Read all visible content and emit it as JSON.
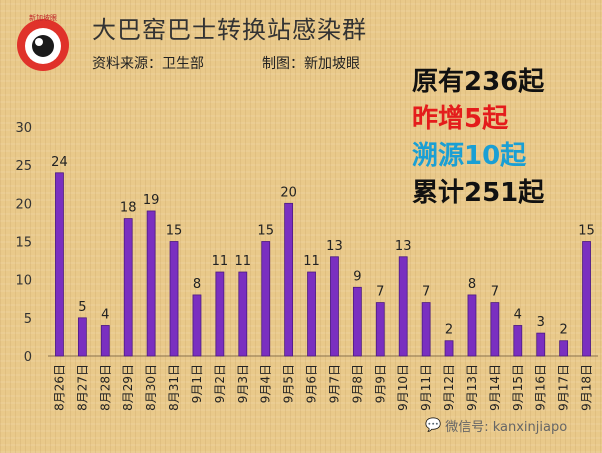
{
  "header": {
    "title": "大巴窑巴士转换站感染群",
    "source": "资料来源：卫生部",
    "credit": "制图：新加坡眼"
  },
  "logo_text": "新加坡眼",
  "stats": {
    "existing": "原有236起",
    "yesterday": "昨增5起",
    "traced": "溯源10起",
    "total": "累计251起"
  },
  "watermark": "微信号: kanxinjiapo",
  "colors": {
    "bar": "#7a2fc0",
    "bar_stroke": "#4b1a80",
    "red": "#e41c1c",
    "blue": "#1a9fd4"
  },
  "chart_data": {
    "type": "bar",
    "categories": [
      "8月26日",
      "8月27日",
      "8月28日",
      "8月29日",
      "8月30日",
      "8月31日",
      "9月1日",
      "9月2日",
      "9月3日",
      "9月4日",
      "9月5日",
      "9月6日",
      "9月7日",
      "9月8日",
      "9月9日",
      "9月10日",
      "9月11日",
      "9月12日",
      "9月13日",
      "9月14日",
      "9月15日",
      "9月16日",
      "9月17日",
      "9月18日"
    ],
    "values": [
      24,
      5,
      4,
      18,
      19,
      15,
      8,
      11,
      11,
      15,
      20,
      11,
      13,
      9,
      7,
      13,
      7,
      2,
      8,
      7,
      4,
      3,
      2,
      15
    ],
    "yticks": [
      0,
      5,
      10,
      15,
      20,
      25,
      30
    ],
    "ylim": [
      0,
      30
    ],
    "grid": false
  }
}
